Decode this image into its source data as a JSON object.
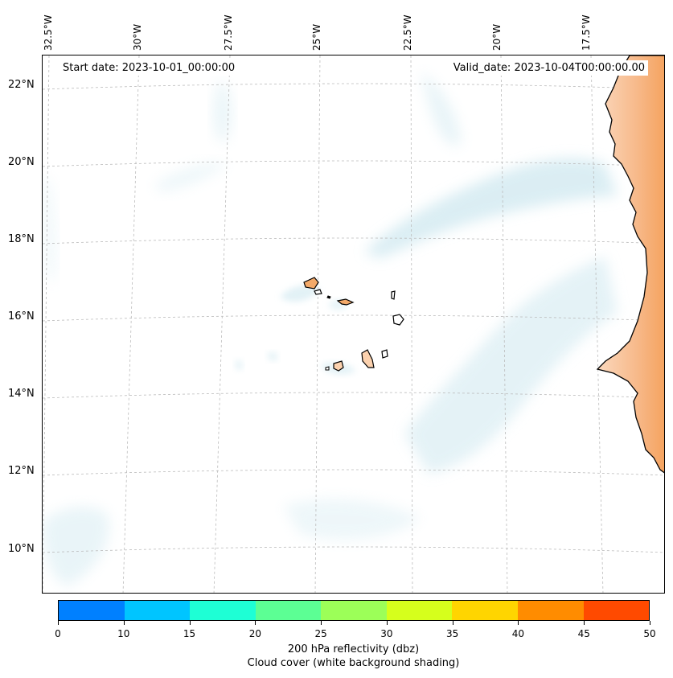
{
  "map": {
    "start_date": "Start date: 2023-10-01_00:00:00",
    "valid_date": "Valid_date: 2023-10-04T00:00:00.00",
    "lon_labels": [
      "32.5°W",
      "30°W",
      "27.5°W",
      "25°W",
      "22.5°W",
      "20°W",
      "17.5°W"
    ],
    "lat_labels": [
      "22°N",
      "20°N",
      "18°N",
      "16°N",
      "14°N",
      "12°N",
      "10°N"
    ],
    "colors": {
      "cloud_shading": "#cfe8f0",
      "land_warm": "#f5a25d",
      "land_light": "#fbd8bd",
      "coastline": "#000000",
      "gridline": "#bbbbbb"
    }
  },
  "colorbar": {
    "ticks": [
      "0",
      "10",
      "15",
      "20",
      "25",
      "30",
      "35",
      "40",
      "45",
      "50"
    ],
    "colors": [
      "#0080ff",
      "#00c5ff",
      "#1effd5",
      "#5cff94",
      "#9cff58",
      "#d6ff1c",
      "#ffd500",
      "#ff8c00",
      "#ff4a00"
    ],
    "title_line1": "200 hPa reflectivity (dbz)",
    "title_line2": "Cloud cover (white background shading)"
  }
}
